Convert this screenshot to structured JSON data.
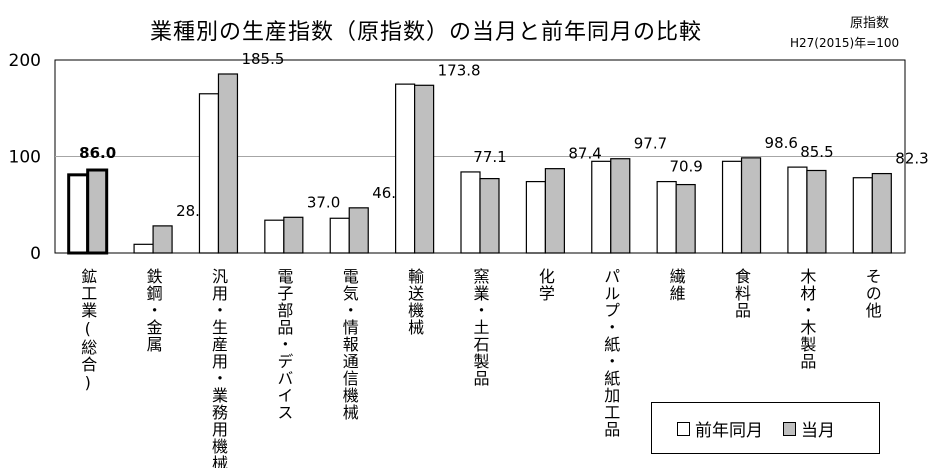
{
  "title": "業種別の生産指数（原指数）の当月と前年同月の比較",
  "note": {
    "line1": "原指数",
    "line2": "H27(2015)年=100"
  },
  "legend": {
    "prev_label": "前年同月",
    "curr_label": "当月"
  },
  "colors": {
    "prev": "#ffffff",
    "curr": "#bfbfbf",
    "border": "#000000",
    "grid": "#a6a6a6"
  },
  "chart_data": {
    "type": "bar",
    "title": "業種別の生産指数（原指数）の当月と前年同月の比較",
    "ylim": [
      0,
      200
    ],
    "yticks": [
      0,
      100,
      200
    ],
    "grid": true,
    "legend_position": "bottom-right",
    "categories": [
      "鉱工業(総合)",
      "鉄鋼・金属",
      "汎用・生産用・業務用機械",
      "電子部品・デバイス",
      "電気・情報通信機械",
      "輸送機械",
      "窯業・土石製品",
      "化学",
      "パルプ・紙・紙加工品",
      "繊維",
      "食料品",
      "木材・木製品",
      "その他"
    ],
    "series": [
      {
        "name": "前年同月",
        "values": [
          81,
          9,
          165,
          34,
          36,
          175,
          84,
          74,
          95,
          74,
          95,
          89,
          78
        ]
      },
      {
        "name": "当月",
        "values": [
          86.0,
          28.1,
          185.5,
          37.0,
          46.8,
          173.8,
          77.1,
          87.4,
          97.7,
          70.9,
          98.6,
          85.5,
          82.3
        ]
      }
    ],
    "data_labels": [
      "86.0",
      "28.1",
      "185.5",
      "37.0",
      "46.8",
      "173.8",
      "77.1",
      "87.4",
      "97.7",
      "70.9",
      "98.6",
      "85.5",
      "82.3"
    ]
  }
}
